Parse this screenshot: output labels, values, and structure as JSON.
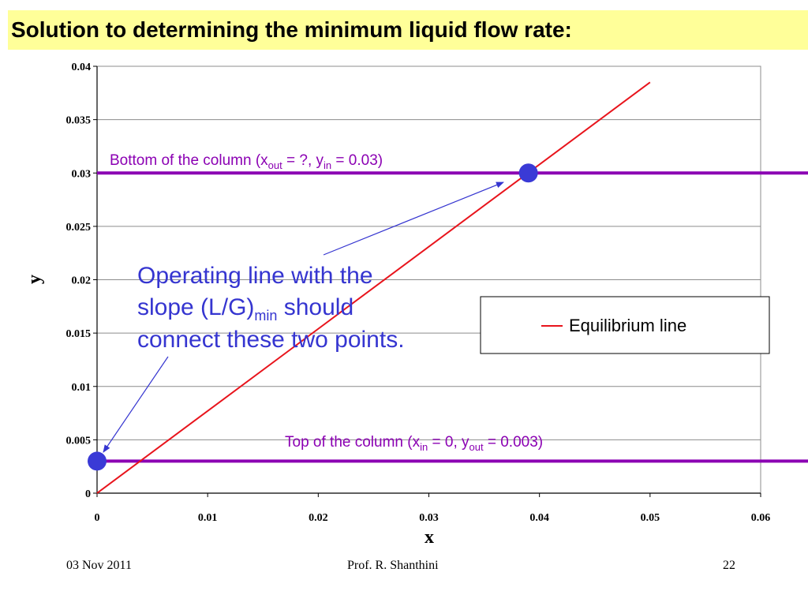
{
  "slide": {
    "title": "Solution to determining the minimum liquid flow rate:",
    "footer_date": "03 Nov 2011",
    "footer_author": "Prof. R. Shanthini",
    "footer_page": "22",
    "colors": {
      "title_bg": "#ffff99",
      "purple": "#8b00b3",
      "blue": "#3535d0",
      "red": "#e8141c",
      "point": "#3a3ad6"
    }
  },
  "chart_data": {
    "type": "line",
    "xlabel": "x",
    "ylabel": "y",
    "xlim": [
      0,
      0.06
    ],
    "ylim": [
      0,
      0.04
    ],
    "x_ticks": [
      "0",
      "0.01",
      "0.02",
      "0.03",
      "0.04",
      "0.05",
      "0.06"
    ],
    "y_ticks": [
      "0",
      "0.005",
      "0.01",
      "0.015",
      "0.02",
      "0.025",
      "0.03",
      "0.035",
      "0.04"
    ],
    "grid": "horizontal",
    "legend_position": "right",
    "series": [
      {
        "name": "Equilibrium line",
        "x": [
          0,
          0.05
        ],
        "y": [
          0,
          0.0385
        ],
        "color": "#e8141c"
      }
    ],
    "horizontal_lines": [
      {
        "y": 0.03,
        "color": "#8b00b3"
      },
      {
        "y": 0.003,
        "color": "#8b00b3"
      }
    ],
    "points": [
      {
        "x": 0.039,
        "y": 0.03
      },
      {
        "x": 0,
        "y": 0.003
      }
    ],
    "annotations": {
      "bottom": {
        "pre": "Bottom of the column (x",
        "sub1": "out",
        "mid": " = ?, y",
        "sub2": "in",
        "post": " = 0.03)"
      },
      "top": {
        "pre": "Top of the column (x",
        "sub1": "in",
        "mid": " = 0, y",
        "sub2": "out",
        "post": " = 0.003)"
      },
      "operating": {
        "line1": "Operating line with the",
        "line2_pre": "slope (L/G)",
        "line2_sub": "min",
        "line2_post": " should",
        "line3": "connect these two points."
      }
    }
  }
}
